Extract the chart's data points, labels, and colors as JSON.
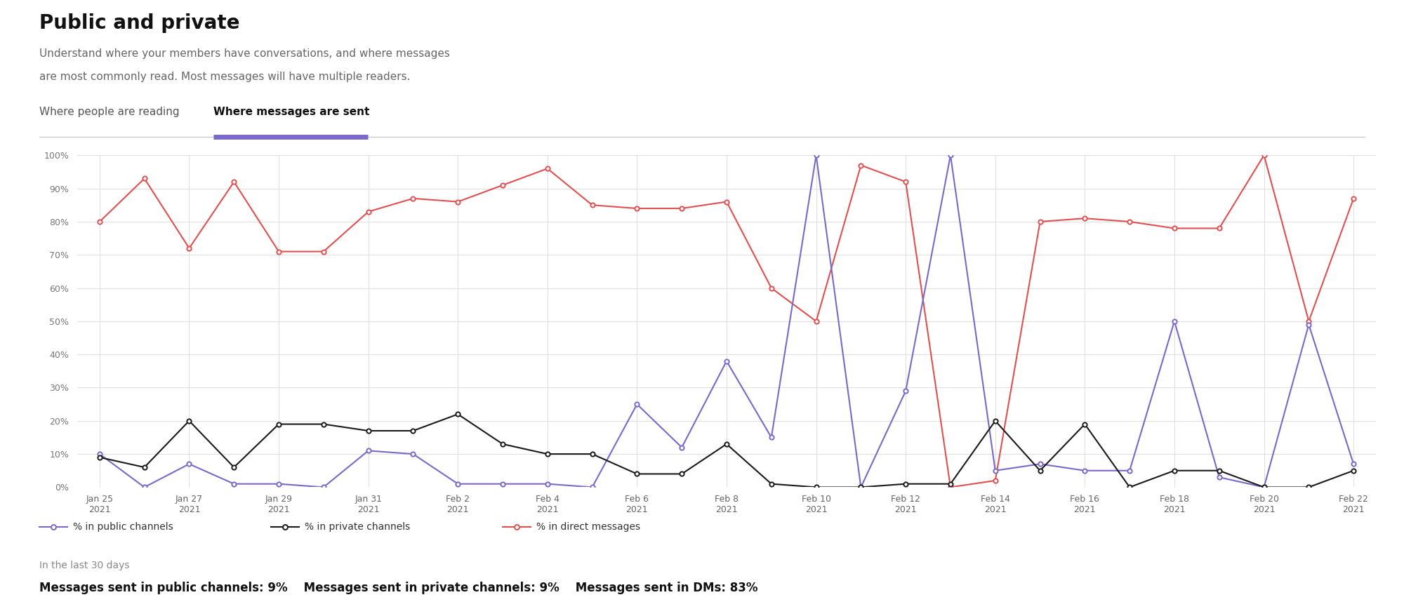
{
  "title": "Public and private",
  "subtitle_line1": "Understand where your members have conversations, and where messages",
  "subtitle_line2": "are most commonly read. Most messages will have multiple readers.",
  "tab1": "Where people are reading",
  "tab2": "Where messages are sent",
  "tab_underline_color": "#7B68C8",
  "x_tick_positions": [
    0,
    2,
    4,
    6,
    8,
    10,
    12,
    14,
    16,
    18,
    20,
    22,
    24,
    26,
    28
  ],
  "x_labels": [
    "Jan 25\n2021",
    "Jan 27\n2021",
    "Jan 29\n2021",
    "Jan 31\n2021",
    "Feb 2\n2021",
    "Feb 4\n2021",
    "Feb 6\n2021",
    "Feb 8\n2021",
    "Feb 10\n2021",
    "Feb 12\n2021",
    "Feb 14\n2021",
    "Feb 16\n2021",
    "Feb 18\n2021",
    "Feb 20\n2021",
    "Feb 22\n2021"
  ],
  "dm_vals": [
    80,
    93,
    72,
    92,
    71,
    71,
    83,
    87,
    86,
    91,
    96,
    85,
    84,
    84,
    86,
    60,
    50,
    97,
    92,
    0,
    2,
    80,
    81,
    80,
    78,
    78,
    100,
    50,
    87
  ],
  "public_vals": [
    10,
    0,
    7,
    1,
    1,
    0,
    11,
    10,
    1,
    1,
    1,
    0,
    25,
    12,
    38,
    15,
    100,
    0,
    29,
    100,
    5,
    7,
    5,
    5,
    50,
    3,
    0,
    49,
    7
  ],
  "private_vals": [
    9,
    6,
    20,
    6,
    19,
    19,
    17,
    17,
    22,
    13,
    10,
    10,
    4,
    4,
    13,
    1,
    0,
    0,
    1,
    1,
    20,
    5,
    19,
    0,
    5,
    5,
    0,
    0,
    5
  ],
  "public_color": "#7B68C8",
  "private_color": "#1a1a1a",
  "dm_color": "#e05050",
  "background_color": "#ffffff",
  "grid_color": "#e0e0e0",
  "footer_label": "In the last 30 days",
  "footer_stat1": "Messages sent in public channels: 9%",
  "footer_stat2": "Messages sent in private channels: 9%",
  "footer_stat3": "Messages sent in DMs: 83%",
  "legend": [
    {
      "label": "% in public channels",
      "color": "#7B68C8"
    },
    {
      "label": "% in private channels",
      "color": "#1a1a1a"
    },
    {
      "label": "% in direct messages",
      "color": "#e05050"
    }
  ]
}
